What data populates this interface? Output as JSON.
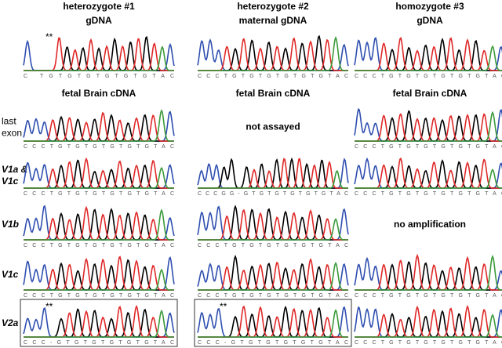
{
  "row_labels": [
    "last exon",
    "V1a & V1c",
    "V1b",
    "V1c",
    "V2a"
  ],
  "columns": [
    {
      "header": "heterozygote #1",
      "gdna_label": "gDNA",
      "gdna": {
        "sequence": "C   TGTGTGTGTGTGTAC",
        "marker": "**"
      },
      "cdna_label": "fetal Brain cDNA",
      "cells": [
        {
          "sequence": "CCCTGTGTGTGTGTGTAC"
        },
        {
          "sequence": "CCCTGTGTGTGTGTGTAC"
        },
        {
          "sequence": "CCCTGTGTGTGTGTGTAC"
        },
        {
          "sequence": "CCCTGTGTGTGTGTGTAC"
        },
        {
          "sequence": "CCC-GTGTGTGTGTGTAC",
          "marker": "**",
          "boxed": true
        }
      ]
    },
    {
      "header": "heterozygote #2",
      "gdna_label": "maternal gDNA",
      "gdna": {
        "sequence": "CCCTGTGTGTGTGTGTAC"
      },
      "cdna_label": "fetal Brain cDNA",
      "cells": [
        {
          "note": "not assayed"
        },
        {
          "sequence": "CCCGG-GTGTGTGTGTGTAC"
        },
        {
          "sequence": "CCCTGTGTGTGTGTGTAC"
        },
        {
          "sequence": "CCCTGTGTGTGTGTGTAC"
        },
        {
          "sequence": "CCC-GTGTGTGTGTGTAC",
          "marker": "**",
          "boxed": true
        }
      ]
    },
    {
      "header": "homozygote #3",
      "gdna_label": "gDNA",
      "gdna": {
        "sequence": "CCCTGTGTGTGTGTGTAC"
      },
      "cdna_label": "fetal Brain cDNA",
      "cells": [
        {
          "sequence": "CCCTGTGTGTGTGTGTAC"
        },
        {
          "sequence": "CCCTGTGTGTGTGTGTAC"
        },
        {
          "note": "no amplification"
        },
        {
          "sequence": "CCCTGTGTGTGTGTGTAC"
        },
        {
          "sequence": "CCCTGTGTGTGTGTGTAC"
        }
      ]
    }
  ]
}
